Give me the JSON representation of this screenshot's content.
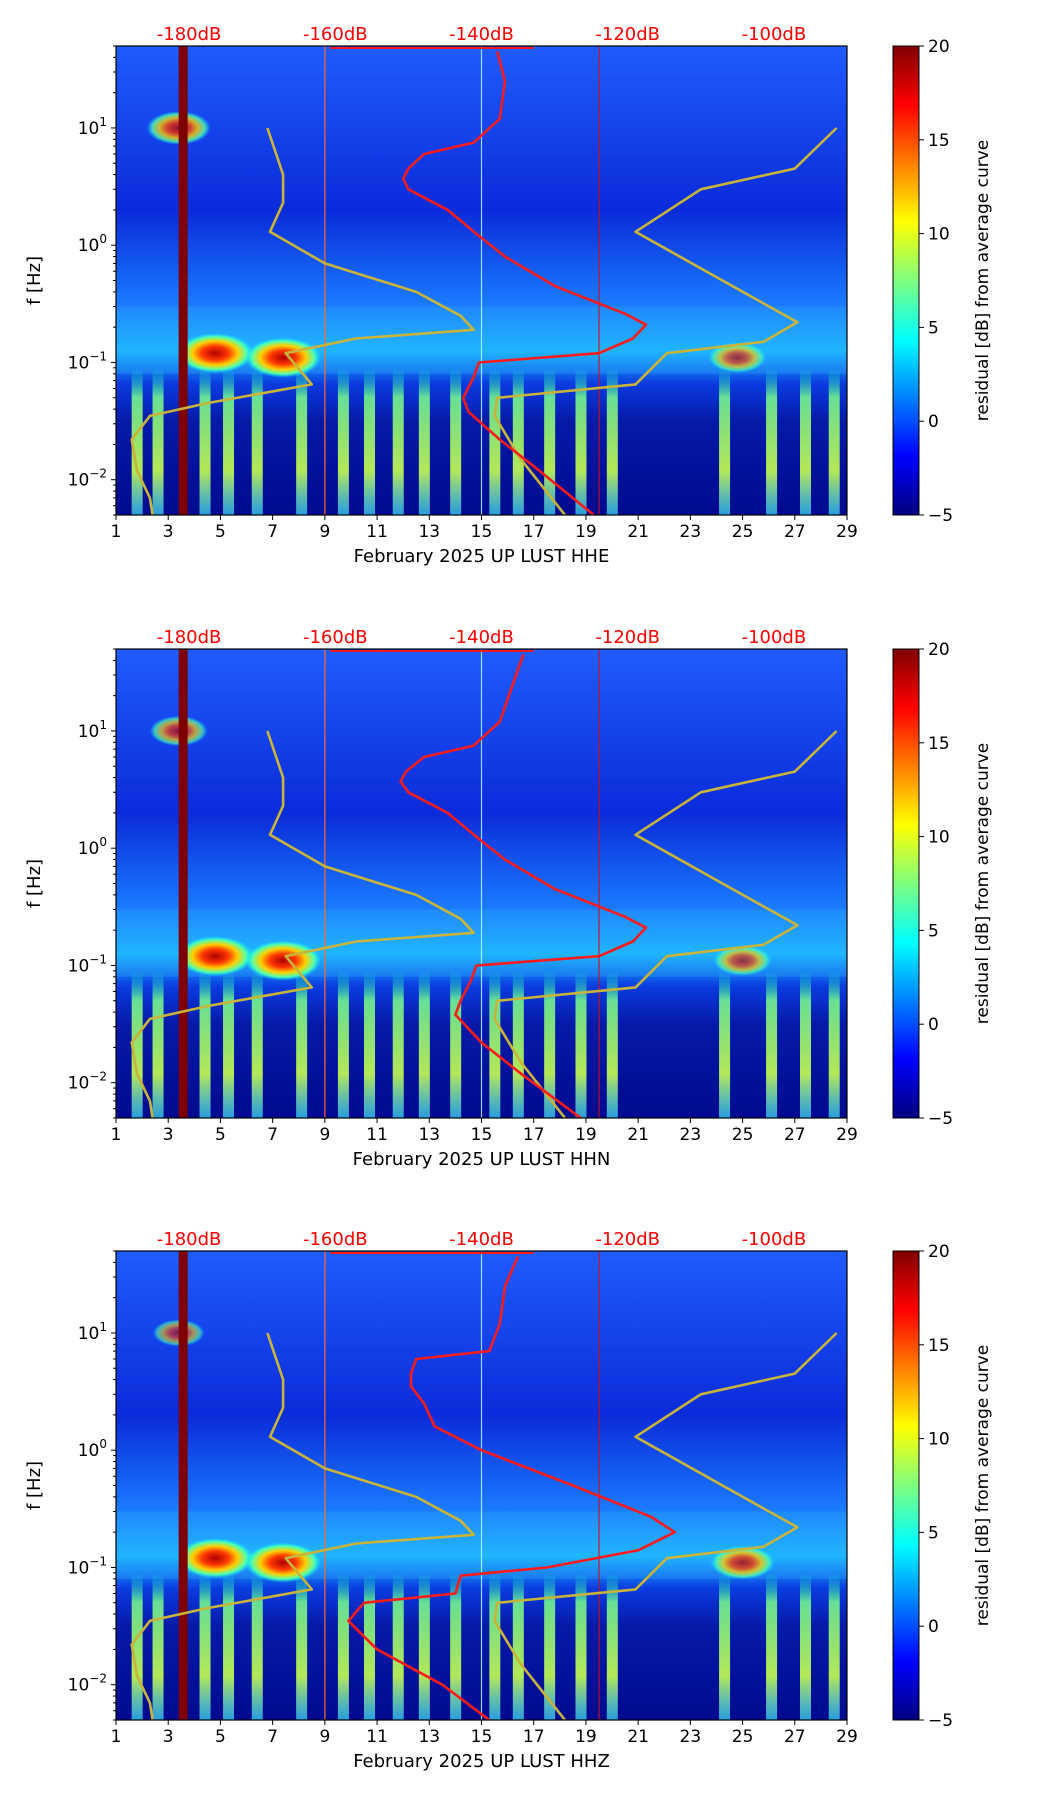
{
  "colors": {
    "red_curve": "#ff1a1a",
    "nlnm_curve": "#c8b43a",
    "top_label": "#ff0000",
    "jet_stops": [
      "#00007f",
      "#0000ff",
      "#007fff",
      "#00ffff",
      "#7fff7f",
      "#ffff00",
      "#ff7f00",
      "#ff0000",
      "#7f0000"
    ]
  },
  "chart_data": [
    {
      "type": "heatmap",
      "xlabel": "February 2025 UP LUST  HHE",
      "ylabel": "f [Hz]",
      "x_ticks": [
        "1",
        "3",
        "5",
        "7",
        "9",
        "11",
        "13",
        "15",
        "17",
        "19",
        "21",
        "23",
        "25",
        "27",
        "29"
      ],
      "xlim": [
        1,
        29
      ],
      "ylim": [
        0.005,
        50
      ],
      "y_ticks": [
        {
          "value": 0.01,
          "base": "10",
          "exp": "−2"
        },
        {
          "value": 0.1,
          "base": "10",
          "exp": "−1"
        },
        {
          "value": 1,
          "base": "10",
          "exp": "0"
        },
        {
          "value": 10,
          "base": "10",
          "exp": "1"
        }
      ],
      "top_axis_labels": [
        "-180dB",
        "-160dB",
        "-140dB",
        "-120dB",
        "-100dB"
      ],
      "top_axis_positions_day": [
        3.8,
        9.4,
        15.0,
        20.6,
        26.2
      ],
      "colorbar": {
        "label": "residual [dB] from average curve",
        "min": -5,
        "max": 20,
        "ticks": [
          "−5",
          "0",
          "5",
          "10",
          "15",
          "20"
        ]
      },
      "hotspots": [
        {
          "day": 4.8,
          "freq": 0.12,
          "strength": 1.0
        },
        {
          "day": 7.4,
          "freq": 0.11,
          "strength": 1.0
        },
        {
          "day": 3.4,
          "freq": 10,
          "strength": 0.8
        },
        {
          "day": 24.8,
          "freq": 0.11,
          "strength": 0.7
        }
      ],
      "series": [
        {
          "name": "NLNM/NHNM model (yellow)",
          "points": [
            [
              2.4,
              0.005
            ],
            [
              2.3,
              0.007
            ],
            [
              1.8,
              0.012
            ],
            [
              1.6,
              0.022
            ],
            [
              2.3,
              0.035
            ],
            [
              4.5,
              0.045
            ],
            [
              8.5,
              0.065
            ],
            [
              7.5,
              0.12
            ],
            [
              10.2,
              0.16
            ],
            [
              14.7,
              0.19
            ],
            [
              14.2,
              0.25
            ],
            [
              12.5,
              0.4
            ],
            [
              9.0,
              0.7
            ],
            [
              6.9,
              1.3
            ],
            [
              7.4,
              2.3
            ],
            [
              7.4,
              4.0
            ],
            [
              6.8,
              10.0
            ]
          ]
        },
        {
          "name": "NLNM/NHNM model upper (yellow)",
          "points": [
            [
              18.2,
              0.005
            ],
            [
              16.5,
              0.015
            ],
            [
              15.5,
              0.035
            ],
            [
              15.6,
              0.05
            ],
            [
              20.9,
              0.065
            ],
            [
              22.1,
              0.12
            ],
            [
              25.8,
              0.15
            ],
            [
              27.1,
              0.22
            ],
            [
              24.6,
              0.45
            ],
            [
              20.9,
              1.3
            ],
            [
              23.4,
              3.0
            ],
            [
              27.0,
              4.5
            ],
            [
              28.6,
              10.0
            ]
          ]
        },
        {
          "name": "mean noise curve (red)",
          "points": [
            [
              19.3,
              0.005
            ],
            [
              17.2,
              0.012
            ],
            [
              15.7,
              0.022
            ],
            [
              14.5,
              0.038
            ],
            [
              14.3,
              0.05
            ],
            [
              14.7,
              0.075
            ],
            [
              14.9,
              0.1
            ],
            [
              19.5,
              0.12
            ],
            [
              20.8,
              0.16
            ],
            [
              21.3,
              0.21
            ],
            [
              20.5,
              0.26
            ],
            [
              17.8,
              0.45
            ],
            [
              15.9,
              0.8
            ],
            [
              14.9,
              1.2
            ],
            [
              13.7,
              2.0
            ],
            [
              12.2,
              3.0
            ],
            [
              12.0,
              3.7
            ],
            [
              12.2,
              4.5
            ],
            [
              12.8,
              6.0
            ],
            [
              14.7,
              7.5
            ],
            [
              15.7,
              12
            ],
            [
              15.9,
              25
            ],
            [
              15.6,
              45
            ]
          ]
        }
      ]
    },
    {
      "type": "heatmap",
      "xlabel": "February 2025 UP LUST  HHN",
      "ylabel": "f [Hz]",
      "x_ticks": [
        "1",
        "3",
        "5",
        "7",
        "9",
        "11",
        "13",
        "15",
        "17",
        "19",
        "21",
        "23",
        "25",
        "27",
        "29"
      ],
      "xlim": [
        1,
        29
      ],
      "ylim": [
        0.005,
        50
      ],
      "y_ticks": [
        {
          "value": 0.01,
          "base": "10",
          "exp": "−2"
        },
        {
          "value": 0.1,
          "base": "10",
          "exp": "−1"
        },
        {
          "value": 1,
          "base": "10",
          "exp": "0"
        },
        {
          "value": 10,
          "base": "10",
          "exp": "1"
        }
      ],
      "top_axis_labels": [
        "-180dB",
        "-160dB",
        "-140dB",
        "-120dB",
        "-100dB"
      ],
      "top_axis_positions_day": [
        3.8,
        9.4,
        15.0,
        20.6,
        26.2
      ],
      "colorbar": {
        "label": "residual [dB] from average curve",
        "min": -5,
        "max": 20,
        "ticks": [
          "−5",
          "0",
          "5",
          "10",
          "15",
          "20"
        ]
      },
      "hotspots": [
        {
          "day": 4.8,
          "freq": 0.12,
          "strength": 1.0
        },
        {
          "day": 7.4,
          "freq": 0.11,
          "strength": 1.0
        },
        {
          "day": 3.4,
          "freq": 10,
          "strength": 0.7
        },
        {
          "day": 25.0,
          "freq": 0.11,
          "strength": 0.7
        }
      ],
      "series": [
        {
          "name": "NLNM/NHNM model (yellow)",
          "points": [
            [
              2.4,
              0.005
            ],
            [
              2.3,
              0.007
            ],
            [
              1.8,
              0.012
            ],
            [
              1.6,
              0.022
            ],
            [
              2.3,
              0.035
            ],
            [
              4.5,
              0.045
            ],
            [
              8.5,
              0.065
            ],
            [
              7.5,
              0.12
            ],
            [
              10.2,
              0.16
            ],
            [
              14.7,
              0.19
            ],
            [
              14.2,
              0.25
            ],
            [
              12.5,
              0.4
            ],
            [
              9.0,
              0.7
            ],
            [
              6.9,
              1.3
            ],
            [
              7.4,
              2.3
            ],
            [
              7.4,
              4.0
            ],
            [
              6.8,
              10.0
            ]
          ]
        },
        {
          "name": "NLNM/NHNM model upper (yellow)",
          "points": [
            [
              18.2,
              0.005
            ],
            [
              16.5,
              0.015
            ],
            [
              15.5,
              0.035
            ],
            [
              15.6,
              0.05
            ],
            [
              20.9,
              0.065
            ],
            [
              22.1,
              0.12
            ],
            [
              25.8,
              0.15
            ],
            [
              27.1,
              0.22
            ],
            [
              24.6,
              0.45
            ],
            [
              20.9,
              1.3
            ],
            [
              23.4,
              3.0
            ],
            [
              27.0,
              4.5
            ],
            [
              28.6,
              10.0
            ]
          ]
        },
        {
          "name": "mean noise curve (red)",
          "points": [
            [
              18.8,
              0.005
            ],
            [
              16.5,
              0.012
            ],
            [
              15.0,
              0.022
            ],
            [
              14.0,
              0.038
            ],
            [
              14.2,
              0.05
            ],
            [
              14.6,
              0.075
            ],
            [
              14.8,
              0.1
            ],
            [
              19.5,
              0.12
            ],
            [
              20.8,
              0.16
            ],
            [
              21.3,
              0.21
            ],
            [
              20.5,
              0.26
            ],
            [
              17.8,
              0.45
            ],
            [
              15.9,
              0.8
            ],
            [
              14.9,
              1.2
            ],
            [
              13.7,
              2.0
            ],
            [
              12.2,
              3.0
            ],
            [
              11.9,
              3.7
            ],
            [
              12.1,
              4.5
            ],
            [
              12.8,
              6.0
            ],
            [
              14.7,
              7.5
            ],
            [
              15.7,
              12
            ],
            [
              16.2,
              25
            ],
            [
              16.6,
              45
            ]
          ]
        }
      ]
    },
    {
      "type": "heatmap",
      "xlabel": "February 2025 UP LUST  HHZ",
      "ylabel": "f [Hz]",
      "x_ticks": [
        "1",
        "3",
        "5",
        "7",
        "9",
        "11",
        "13",
        "15",
        "17",
        "19",
        "21",
        "23",
        "25",
        "27",
        "29"
      ],
      "xlim": [
        1,
        29
      ],
      "ylim": [
        0.005,
        50
      ],
      "y_ticks": [
        {
          "value": 0.01,
          "base": "10",
          "exp": "−2"
        },
        {
          "value": 0.1,
          "base": "10",
          "exp": "−1"
        },
        {
          "value": 1,
          "base": "10",
          "exp": "0"
        },
        {
          "value": 10,
          "base": "10",
          "exp": "1"
        }
      ],
      "top_axis_labels": [
        "-180dB",
        "-160dB",
        "-140dB",
        "-120dB",
        "-100dB"
      ],
      "top_axis_positions_day": [
        3.8,
        9.4,
        15.0,
        20.6,
        26.2
      ],
      "colorbar": {
        "label": "residual [dB] from average curve",
        "min": -5,
        "max": 20,
        "ticks": [
          "−5",
          "0",
          "5",
          "10",
          "15",
          "20"
        ]
      },
      "hotspots": [
        {
          "day": 4.8,
          "freq": 0.12,
          "strength": 1.0
        },
        {
          "day": 7.4,
          "freq": 0.11,
          "strength": 1.0
        },
        {
          "day": 3.4,
          "freq": 10,
          "strength": 0.6
        },
        {
          "day": 25.0,
          "freq": 0.11,
          "strength": 0.8
        }
      ],
      "series": [
        {
          "name": "NLNM/NHNM model (yellow)",
          "points": [
            [
              2.4,
              0.005
            ],
            [
              2.3,
              0.007
            ],
            [
              1.8,
              0.012
            ],
            [
              1.6,
              0.022
            ],
            [
              2.3,
              0.035
            ],
            [
              4.5,
              0.045
            ],
            [
              8.5,
              0.065
            ],
            [
              7.5,
              0.12
            ],
            [
              10.2,
              0.16
            ],
            [
              14.7,
              0.19
            ],
            [
              14.2,
              0.25
            ],
            [
              12.5,
              0.4
            ],
            [
              9.0,
              0.7
            ],
            [
              6.9,
              1.3
            ],
            [
              7.4,
              2.3
            ],
            [
              7.4,
              4.0
            ],
            [
              6.8,
              10.0
            ]
          ]
        },
        {
          "name": "NLNM/NHNM model upper (yellow)",
          "points": [
            [
              18.2,
              0.005
            ],
            [
              16.5,
              0.015
            ],
            [
              15.5,
              0.035
            ],
            [
              15.6,
              0.05
            ],
            [
              20.9,
              0.065
            ],
            [
              22.1,
              0.12
            ],
            [
              25.8,
              0.15
            ],
            [
              27.1,
              0.22
            ],
            [
              24.6,
              0.45
            ],
            [
              20.9,
              1.3
            ],
            [
              23.4,
              3.0
            ],
            [
              27.0,
              4.5
            ],
            [
              28.6,
              10.0
            ]
          ]
        },
        {
          "name": "mean noise curve (red)",
          "points": [
            [
              15.3,
              0.005
            ],
            [
              13.5,
              0.01
            ],
            [
              11.0,
              0.02
            ],
            [
              9.9,
              0.035
            ],
            [
              10.5,
              0.05
            ],
            [
              14.0,
              0.06
            ],
            [
              14.2,
              0.085
            ],
            [
              17.5,
              0.1
            ],
            [
              21.0,
              0.14
            ],
            [
              22.4,
              0.2
            ],
            [
              21.5,
              0.27
            ],
            [
              18.5,
              0.5
            ],
            [
              15.0,
              1.0
            ],
            [
              13.2,
              1.6
            ],
            [
              12.8,
              2.5
            ],
            [
              12.3,
              3.5
            ],
            [
              12.3,
              4.5
            ],
            [
              12.5,
              6.0
            ],
            [
              15.3,
              7.0
            ],
            [
              15.7,
              12
            ],
            [
              15.9,
              25
            ],
            [
              16.4,
              45
            ]
          ]
        }
      ]
    }
  ]
}
